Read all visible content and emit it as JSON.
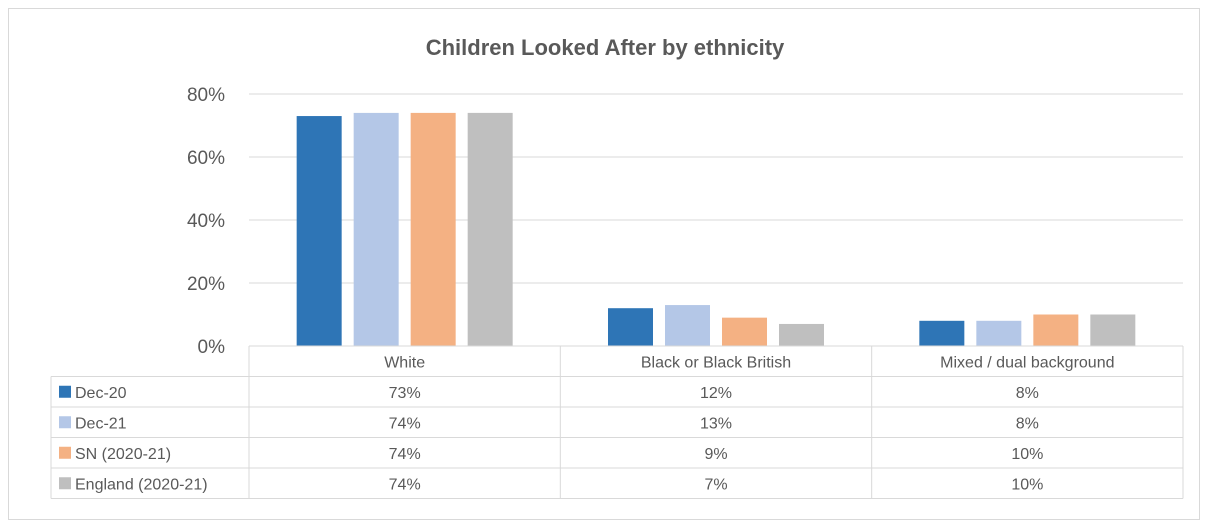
{
  "chart_data": {
    "type": "bar",
    "title": "Children Looked After by ethnicity",
    "categories": [
      "White",
      "Black or Black British",
      "Mixed / dual background"
    ],
    "series": [
      {
        "name": "Dec-20",
        "color": "#2e75b6",
        "values": [
          73,
          12,
          8
        ],
        "labels": [
          "73%",
          "12%",
          "8%"
        ]
      },
      {
        "name": "Dec-21",
        "color": "#b4c7e7",
        "values": [
          74,
          13,
          8
        ],
        "labels": [
          "74%",
          "13%",
          "8%"
        ]
      },
      {
        "name": "SN (2020-21)",
        "color": "#f4b183",
        "values": [
          74,
          9,
          10
        ],
        "labels": [
          "74%",
          "9%",
          "10%"
        ]
      },
      {
        "name": "England (2020-21)",
        "color": "#bfbfbf",
        "values": [
          74,
          7,
          10
        ],
        "labels": [
          "74%",
          "7%",
          "10%"
        ]
      }
    ],
    "ylim": [
      0,
      80
    ],
    "yticks": [
      0,
      20,
      40,
      60,
      80
    ],
    "ytick_labels": [
      "0%",
      "20%",
      "40%",
      "60%",
      "80%"
    ],
    "grid": true,
    "legend": "data-table-left"
  }
}
